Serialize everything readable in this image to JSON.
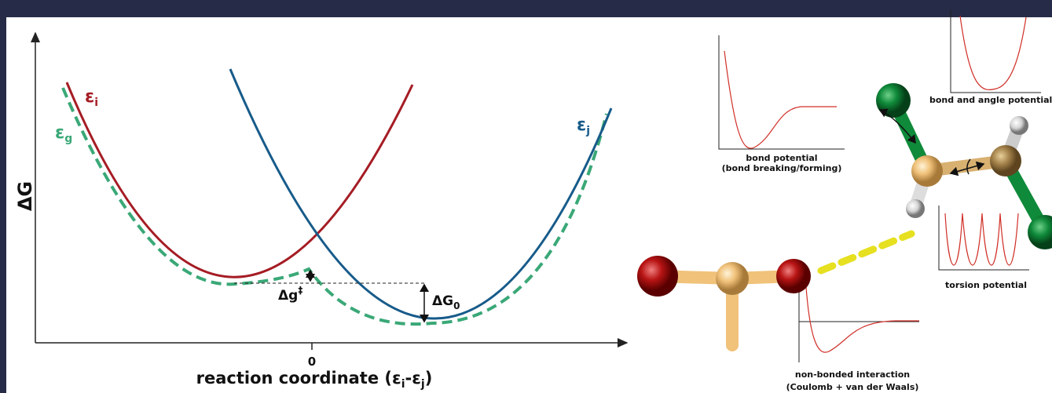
{
  "energy_diagram": {
    "y_axis_label": "ΔG",
    "curve_i": {
      "symbol": "ε",
      "sub": "i"
    },
    "curve_g": {
      "symbol": "ε",
      "sub": "g"
    },
    "curve_j": {
      "symbol": "ε",
      "sub": "j"
    },
    "barrier": {
      "symbol": "Δg",
      "sup": "‡"
    },
    "driving_force": {
      "symbol": "ΔG",
      "sub": "0"
    },
    "x_tick": "0",
    "x_axis_label": {
      "start": "reaction coordinate (ε",
      "sub1": "i",
      "mid": "-ε",
      "sub2": "j",
      "end": ")"
    }
  },
  "force_field": {
    "bond_potential": [
      "bond potential",
      "(bond breaking/forming)"
    ],
    "bond_angle_potential": "bond and angle potential",
    "torsion_potential": "torsion potential",
    "nonbonded": [
      "non-bonded interaction",
      "(Coulomb + van der Waals)"
    ]
  }
}
